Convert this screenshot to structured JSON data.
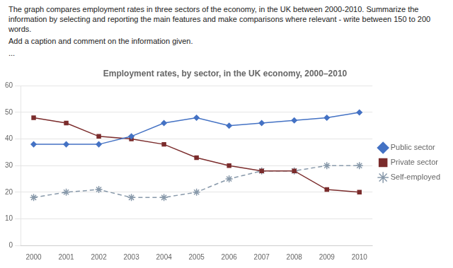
{
  "chart_data": {
    "type": "line",
    "title": "Employment rates, by sector, in the UK economy, 2000–2010",
    "annotations": [
      "The graph compares employment rates in three sectors of the economy, in the UK between 2000-2010. Summarize the information by selecting and reporting the main features and make comparisons where relevant - write between 150 to 200 words.",
      "Add a caption and comment on the information given.",
      "..."
    ],
    "x": [
      2000,
      2001,
      2002,
      2003,
      2004,
      2005,
      2006,
      2007,
      2008,
      2009,
      2010
    ],
    "series": [
      {
        "name": "Public sector",
        "color": "#4472C4",
        "marker": "diamond",
        "line_style": "solid",
        "values": [
          38,
          38,
          38,
          41,
          46,
          48,
          45,
          46,
          47,
          48,
          50
        ]
      },
      {
        "name": "Private sector",
        "color": "#7B2C2C",
        "marker": "square",
        "line_style": "solid",
        "values": [
          48,
          46,
          41,
          40,
          38,
          33,
          30,
          28,
          28,
          21,
          20
        ]
      },
      {
        "name": "Self-employed",
        "color": "#8899AA",
        "marker": "star",
        "line_style": "dashed",
        "values": [
          18,
          20,
          21,
          18,
          18,
          20,
          25,
          28,
          28,
          30,
          30
        ]
      }
    ],
    "xlim": [
      1999.6,
      2010.4
    ],
    "xticks": [
      2000,
      2001,
      2002,
      2003,
      2004,
      2005,
      2006,
      2007,
      2008,
      2009,
      2010
    ],
    "ylim": [
      0,
      60
    ],
    "yticks": [
      0,
      10,
      20,
      30,
      40,
      50,
      60
    ],
    "grid": "y",
    "legend": "right"
  }
}
